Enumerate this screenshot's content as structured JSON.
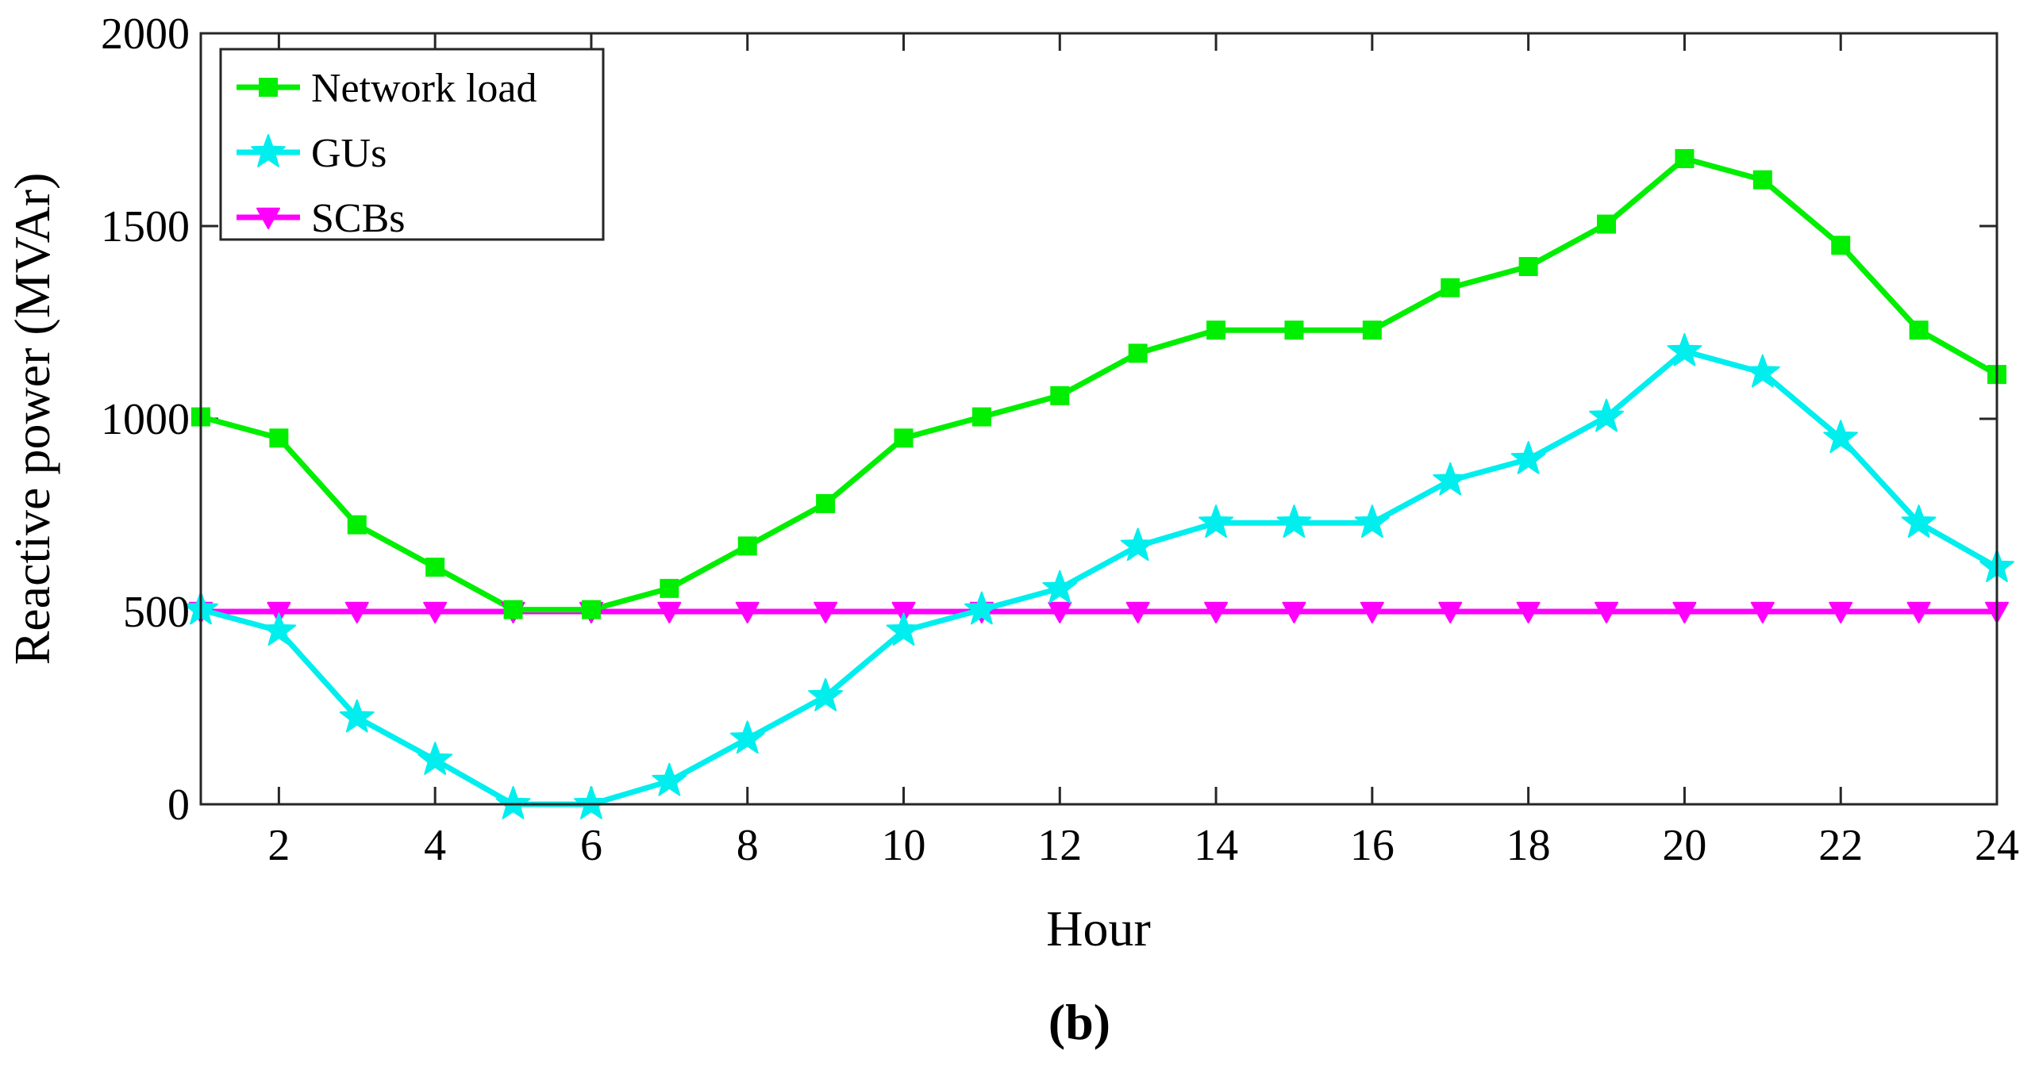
{
  "chart_data": {
    "type": "line",
    "title": "",
    "xlabel": "Hour",
    "ylabel": "Reactive power (MVAr)",
    "xlim": [
      1,
      24
    ],
    "ylim": [
      0,
      2000
    ],
    "xticks": [
      2,
      4,
      6,
      8,
      10,
      12,
      14,
      16,
      18,
      20,
      22,
      24
    ],
    "yticks": [
      0,
      500,
      1000,
      1500,
      2000
    ],
    "grid": false,
    "legend_position": "top-left",
    "x": [
      1,
      2,
      3,
      4,
      5,
      6,
      7,
      8,
      9,
      10,
      11,
      12,
      13,
      14,
      15,
      16,
      17,
      18,
      19,
      20,
      21,
      22,
      23,
      24
    ],
    "series": [
      {
        "name": "Network load",
        "color": "#00ee00",
        "marker": "square",
        "values": [
          1005,
          950,
          725,
          615,
          505,
          505,
          560,
          670,
          780,
          950,
          1005,
          1060,
          1170,
          1230,
          1230,
          1230,
          1340,
          1395,
          1505,
          1675,
          1620,
          1450,
          1230,
          1115
        ]
      },
      {
        "name": "GUs",
        "color": "#00eeee",
        "marker": "star",
        "values": [
          505,
          450,
          225,
          115,
          0,
          0,
          60,
          170,
          280,
          450,
          505,
          560,
          670,
          730,
          730,
          730,
          840,
          895,
          1005,
          1175,
          1120,
          950,
          730,
          615
        ]
      },
      {
        "name": "SCBs",
        "color": "#ff00ff",
        "marker": "triangle-down",
        "values": [
          500,
          500,
          500,
          500,
          500,
          500,
          500,
          500,
          500,
          500,
          500,
          500,
          500,
          500,
          500,
          500,
          500,
          500,
          500,
          500,
          500,
          500,
          500,
          500
        ]
      }
    ],
    "caption": "(b)"
  }
}
